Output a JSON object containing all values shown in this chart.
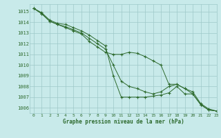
{
  "title": "Graphe pression niveau de la mer (hPa)",
  "background_color": "#c8eaea",
  "grid_color": "#9ec8c8",
  "line_color": "#2d6a2d",
  "marker_color": "#2d6a2d",
  "xlim": [
    -0.5,
    23
  ],
  "ylim": [
    1005.5,
    1015.7
  ],
  "yticks": [
    1006,
    1007,
    1008,
    1009,
    1010,
    1011,
    1012,
    1013,
    1014,
    1015
  ],
  "xticks": [
    0,
    1,
    2,
    3,
    4,
    5,
    6,
    7,
    8,
    9,
    10,
    11,
    12,
    13,
    14,
    15,
    16,
    17,
    18,
    19,
    20,
    21,
    22,
    23
  ],
  "series": [
    [
      1015.3,
      1014.9,
      1014.2,
      1013.9,
      1013.8,
      1013.5,
      1013.2,
      1012.8,
      1012.3,
      1011.8,
      1009.0,
      1007.0,
      1007.0,
      1007.0,
      1007.0,
      1007.1,
      1007.2,
      1007.4,
      1008.0,
      1007.3,
      1007.3,
      1006.3,
      1005.8,
      1005.7
    ],
    [
      1015.3,
      1014.8,
      1014.1,
      1013.8,
      1013.6,
      1013.3,
      1013.0,
      1012.5,
      1012.0,
      1011.5,
      1010.0,
      1008.5,
      1008.0,
      1007.8,
      1007.5,
      1007.3,
      1007.5,
      1008.0,
      1008.2,
      1007.8,
      1007.5,
      1006.4,
      1005.9,
      1005.7
    ],
    [
      1015.3,
      1014.8,
      1014.1,
      1013.8,
      1013.5,
      1013.2,
      1012.9,
      1012.2,
      1011.7,
      1011.2,
      1011.0,
      1011.0,
      1011.2,
      1011.1,
      1010.8,
      1010.4,
      1010.0,
      1008.2,
      1008.2,
      1007.8,
      1007.3,
      1006.3,
      1005.8,
      1005.7
    ]
  ]
}
